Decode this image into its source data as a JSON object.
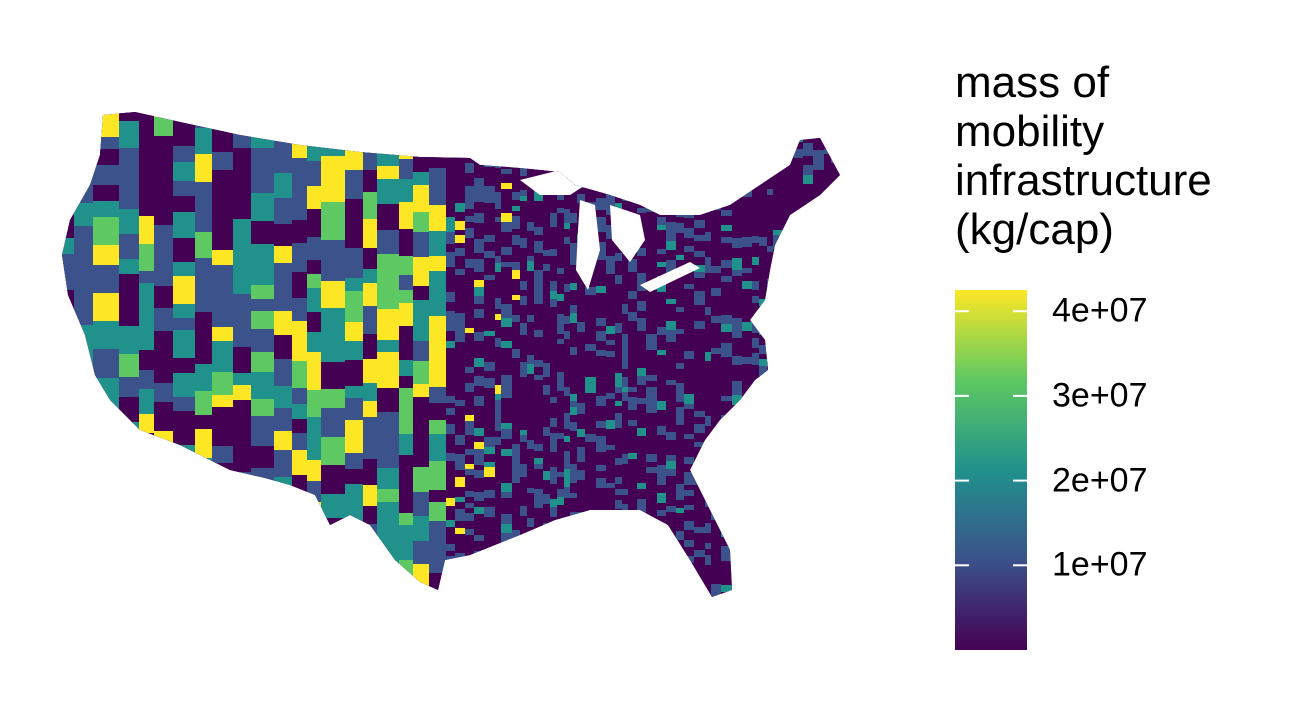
{
  "legend": {
    "title": "mass of\nmobility\ninfrastructure\n(kg/cap)",
    "ticks": [
      {
        "label": "4e+07",
        "value": 40000000
      },
      {
        "label": "3e+07",
        "value": 30000000
      },
      {
        "label": "2e+07",
        "value": 20000000
      },
      {
        "label": "1e+07",
        "value": 10000000
      }
    ],
    "range": [
      0,
      42500000
    ],
    "colormap": "viridis",
    "colors": [
      "#440154",
      "#3b528b",
      "#21918c",
      "#5ec962",
      "#fde725"
    ]
  },
  "map": {
    "region": "contiguous-united-states",
    "unit": "county",
    "fill_colors": {
      "low": "#440154",
      "mid_low": "#3b528b",
      "mid": "#21918c",
      "mid_high": "#5ec962",
      "high": "#fde725"
    }
  }
}
